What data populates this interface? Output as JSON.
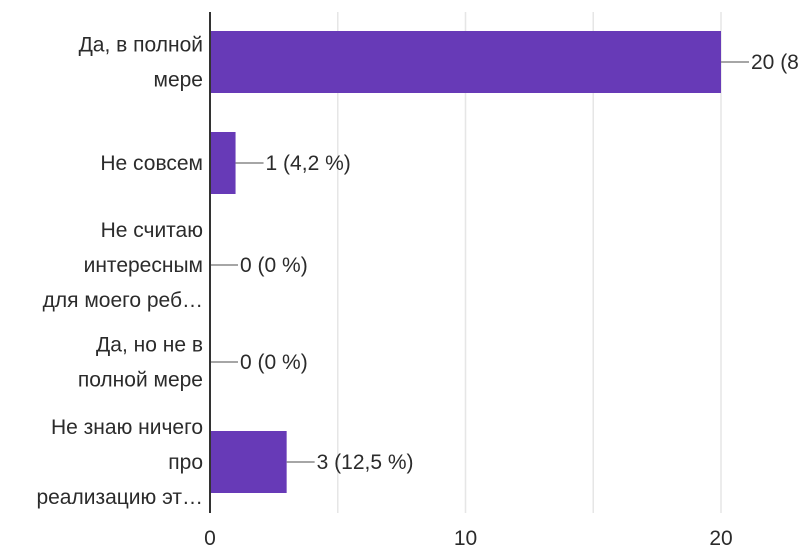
{
  "chart_data": {
    "type": "bar",
    "orientation": "horizontal",
    "categories": [
      [
        "Да, в полной",
        "мере"
      ],
      [
        "Не совсем"
      ],
      [
        "Не считаю",
        "интересным",
        "для моего реб…"
      ],
      [
        "Да, но не в",
        "полной мере"
      ],
      [
        "Не знаю ничего",
        "про",
        "реализацию эт…"
      ]
    ],
    "values": [
      20,
      1,
      0,
      0,
      3
    ],
    "data_labels": [
      "20 (8",
      "1 (4,2 %)",
      "0 (0 %)",
      "0 (0 %)",
      "3 (12,5 %)"
    ],
    "xlim": [
      0,
      20
    ],
    "xticks": [
      0,
      10,
      20
    ],
    "xtick_labels": [
      "0",
      "10",
      "20"
    ],
    "grid": true,
    "bar_color": "#673ab7",
    "grid_color": "#e6e6e6",
    "axis_color": "#333333"
  }
}
